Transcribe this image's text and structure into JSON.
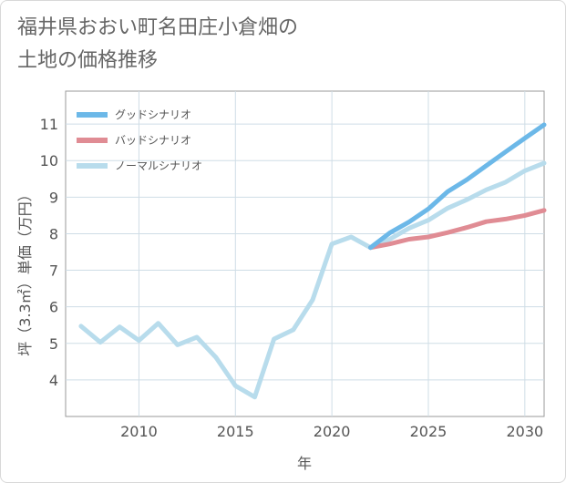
{
  "page": {
    "title_line1": "福井県おおい町名田庄小倉畑の",
    "title_line2": "土地の価格推移"
  },
  "chart_data": {
    "type": "line",
    "xlabel": "年",
    "ylabel": "坪（3.3㎡）単価（万円）",
    "xlim": [
      2006.2,
      2031
    ],
    "ylim": [
      3.0,
      11.9
    ],
    "xticks": [
      2010,
      2015,
      2020,
      2025,
      2030
    ],
    "yticks": [
      4,
      5,
      6,
      7,
      8,
      9,
      10,
      11
    ],
    "grid": true,
    "legend_position": "top-left",
    "series": [
      {
        "name": "グッドシナリオ",
        "color": "#6cb8e8",
        "x": [
          2022,
          2023,
          2024,
          2025,
          2026,
          2027,
          2028,
          2029,
          2030,
          2031
        ],
        "values": [
          7.62,
          8.02,
          8.32,
          8.68,
          9.15,
          9.48,
          9.86,
          10.24,
          10.61,
          10.98
        ]
      },
      {
        "name": "バッドシナリオ",
        "color": "#e08c94",
        "x": [
          2022,
          2023,
          2024,
          2025,
          2026,
          2027,
          2028,
          2029,
          2030,
          2031
        ],
        "values": [
          7.62,
          7.72,
          7.85,
          7.91,
          8.03,
          8.17,
          8.33,
          8.4,
          8.5,
          8.64
        ]
      },
      {
        "name": "ノーマルシナリオ",
        "color": "#b8dcec",
        "x": [
          2007,
          2008,
          2009,
          2010,
          2011,
          2012,
          2013,
          2014,
          2015,
          2016,
          2017,
          2018,
          2019,
          2020,
          2021,
          2022,
          2023,
          2024,
          2025,
          2026,
          2027,
          2028,
          2029,
          2030,
          2031
        ],
        "values": [
          5.47,
          5.03,
          5.45,
          5.08,
          5.55,
          4.96,
          5.17,
          4.61,
          3.84,
          3.53,
          5.12,
          5.37,
          6.19,
          7.72,
          7.91,
          7.62,
          7.85,
          8.15,
          8.37,
          8.7,
          8.93,
          9.2,
          9.41,
          9.72,
          9.93
        ]
      }
    ]
  }
}
